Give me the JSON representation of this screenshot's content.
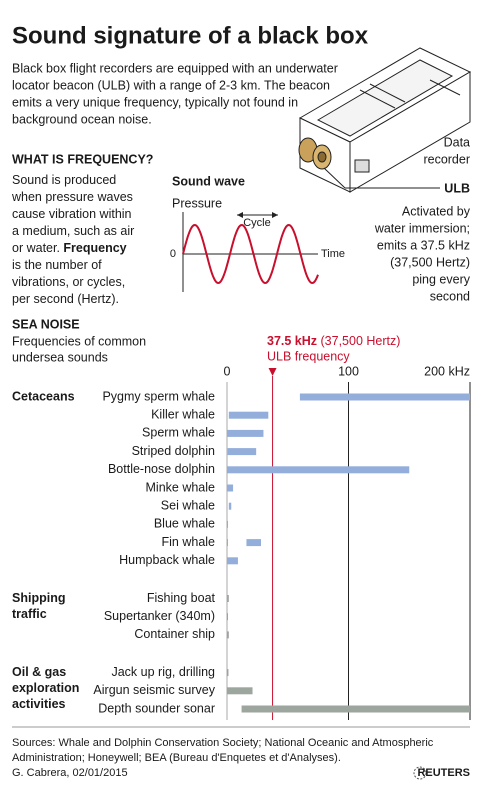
{
  "title": "Sound signature of a black box",
  "intro": [
    "Black box flight recorders are equipped with an underwater",
    "locator beacon (ULB) with a range of 2-3 km. The beacon",
    "emits a very unique frequency, typically not found in",
    "background ocean noise."
  ],
  "device": {
    "recorder_label": [
      "Data",
      "recorder"
    ],
    "ulb_label": "ULB",
    "caption": [
      "Activated by",
      "water immersion;",
      "emits a 37.5 kHz",
      "(37,500 Hertz)",
      "ping every",
      "second"
    ]
  },
  "frequency": {
    "heading": "WHAT IS FREQUENCY?",
    "lines": [
      [
        "Sound is produced"
      ],
      [
        "when pressure waves"
      ],
      [
        "cause vibration within"
      ],
      [
        "a medium, such as air"
      ],
      [
        "or water. ",
        "Frequency"
      ],
      [
        "is the number of"
      ],
      [
        "vibrations, or cycles,"
      ],
      [
        "per second (Hertz)."
      ]
    ]
  },
  "wave": {
    "title": "Sound wave",
    "y_label": "Pressure",
    "cycle_label": "Cycle",
    "zero_label": "0",
    "x_label": "Time"
  },
  "chart_data": {
    "type": "range-bar",
    "title": "SEA NOISE",
    "subtitle": [
      "Frequencies of common",
      "undersea sounds"
    ],
    "xlim": [
      0,
      200
    ],
    "xticks": [
      0,
      100,
      {
        "value": 200,
        "label": "200 kHz"
      }
    ],
    "ulb": {
      "value": 37.5,
      "label": "37.5 kHz",
      "sublabel": " (37,500 Hertz)",
      "caption": "ULB frequency",
      "color": "#c8102e"
    },
    "groups": [
      {
        "name": [
          "Cetaceans"
        ],
        "color": "#94aedb",
        "items": [
          {
            "name": "Pygmy sperm whale",
            "ranges": [
              [
                60,
                200
              ]
            ]
          },
          {
            "name": "Killer whale",
            "ranges": [
              [
                1.5,
                34
              ]
            ]
          },
          {
            "name": "Sperm whale",
            "ranges": [
              [
                0.1,
                30
              ]
            ]
          },
          {
            "name": "Striped dolphin",
            "ranges": [
              [
                0.5,
                24
              ]
            ]
          },
          {
            "name": "Bottle-nose dolphin",
            "ranges": [
              [
                0.2,
                150
              ]
            ]
          },
          {
            "name": "Minke whale",
            "ranges": [
              [
                0.1,
                5
              ]
            ]
          },
          {
            "name": "Sei whale",
            "ranges": [
              [
                1.5,
                3.5
              ]
            ]
          },
          {
            "name": "Blue whale",
            "ranges": [
              [
                0.01,
                0.4
              ]
            ]
          },
          {
            "name": "Fin whale",
            "ranges": [
              [
                0.01,
                0.5
              ],
              [
                16,
                28
              ]
            ]
          },
          {
            "name": "Humpback whale",
            "ranges": [
              [
                0.02,
                9
              ]
            ]
          }
        ]
      },
      {
        "name": [
          "Shipping",
          "traffic"
        ],
        "color": "#9ca59e",
        "items": [
          {
            "name": "Fishing boat",
            "ranges": [
              [
                0.2,
                1.5
              ]
            ]
          },
          {
            "name": "Supertanker (340m)",
            "ranges": [
              [
                0.005,
                0.8
              ]
            ]
          },
          {
            "name": "Container ship",
            "ranges": [
              [
                0.01,
                1.5
              ]
            ]
          }
        ]
      },
      {
        "name": [
          "Oil & gas",
          "exploration",
          "activities"
        ],
        "color": "#9ca59e",
        "items": [
          {
            "name": "Jack up rig, drilling",
            "ranges": [
              [
                0.005,
                1.2
              ]
            ]
          },
          {
            "name": "Airgun seismic survey",
            "ranges": [
              [
                0.005,
                21
              ]
            ]
          },
          {
            "name": "Depth sounder sonar",
            "ranges": [
              [
                12,
                200
              ]
            ]
          }
        ]
      }
    ]
  },
  "footer": {
    "sources": [
      "Sources: Whale and Dolphin Conservation Society; National Oceanic and Atmospheric",
      "Administration; Honeywell; BEA (Bureau d'Enquetes et d'Analyses)."
    ],
    "credit": "G. Cabrera, 02/01/2015",
    "logo": "REUTERS"
  }
}
